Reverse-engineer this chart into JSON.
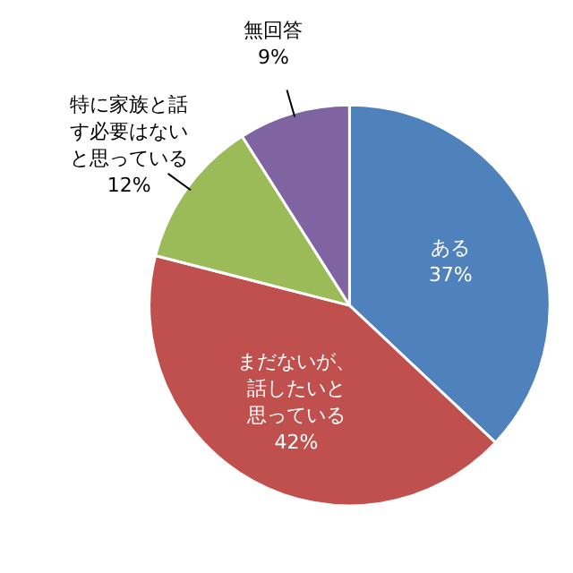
{
  "chart_data": {
    "type": "pie",
    "categories": [
      "ある",
      "まだないが、話したいと思っている",
      "特に家族と話す必要はないと思っている",
      "無回答"
    ],
    "values": [
      37,
      42,
      12,
      9
    ],
    "colors": [
      "#4f81bd",
      "#c0504d",
      "#9bbb59",
      "#8064a2"
    ],
    "value_labels": [
      "37%",
      "42%",
      "12%",
      "9%"
    ]
  }
}
